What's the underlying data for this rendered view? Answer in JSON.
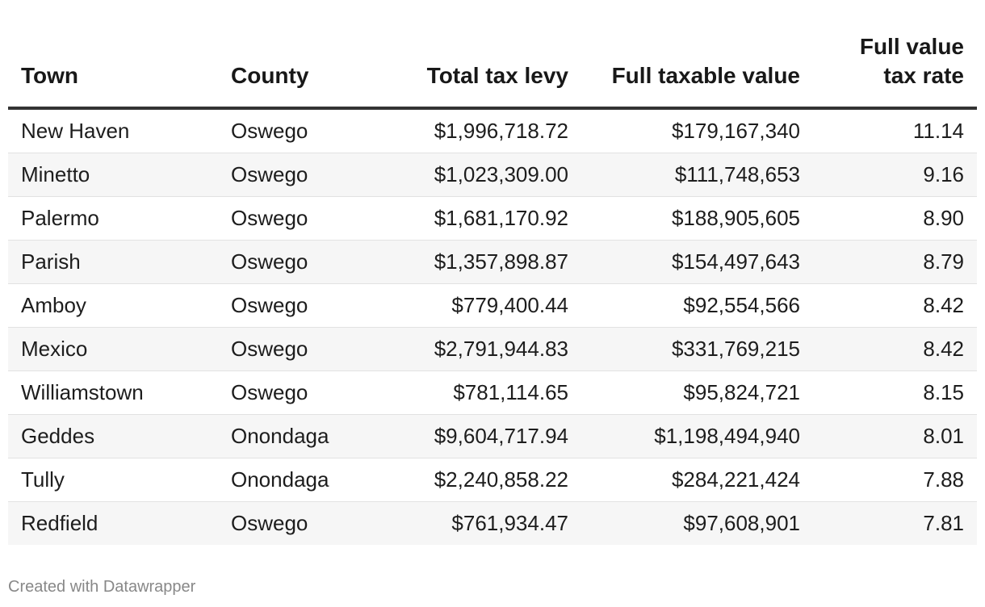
{
  "chart_data": {
    "type": "table",
    "columns": [
      {
        "label": "Town",
        "align": "left"
      },
      {
        "label": "County",
        "align": "left"
      },
      {
        "label": "Total tax levy",
        "align": "right"
      },
      {
        "label": "Full taxable value",
        "align": "right"
      },
      {
        "label": "Full value tax rate",
        "align": "right"
      }
    ],
    "rows": [
      [
        "New Haven",
        "Oswego",
        "$1,996,718.72",
        "$179,167,340",
        "11.14"
      ],
      [
        "Minetto",
        "Oswego",
        "$1,023,309.00",
        "$111,748,653",
        "9.16"
      ],
      [
        "Palermo",
        "Oswego",
        "$1,681,170.92",
        "$188,905,605",
        "8.90"
      ],
      [
        "Parish",
        "Oswego",
        "$1,357,898.87",
        "$154,497,643",
        "8.79"
      ],
      [
        "Amboy",
        "Oswego",
        "$779,400.44",
        "$92,554,566",
        "8.42"
      ],
      [
        "Mexico",
        "Oswego",
        "$2,791,944.83",
        "$331,769,215",
        "8.42"
      ],
      [
        "Williamstown",
        "Oswego",
        "$781,114.65",
        "$95,824,721",
        "8.15"
      ],
      [
        "Geddes",
        "Onondaga",
        "$9,604,717.94",
        "$1,198,494,940",
        "8.01"
      ],
      [
        "Tully",
        "Onondaga",
        "$2,240,858.22",
        "$284,221,424",
        "7.88"
      ],
      [
        "Redfield",
        "Oswego",
        "$761,934.47",
        "$97,608,901",
        "7.81"
      ]
    ]
  },
  "footer": {
    "credit": "Created with Datawrapper"
  }
}
